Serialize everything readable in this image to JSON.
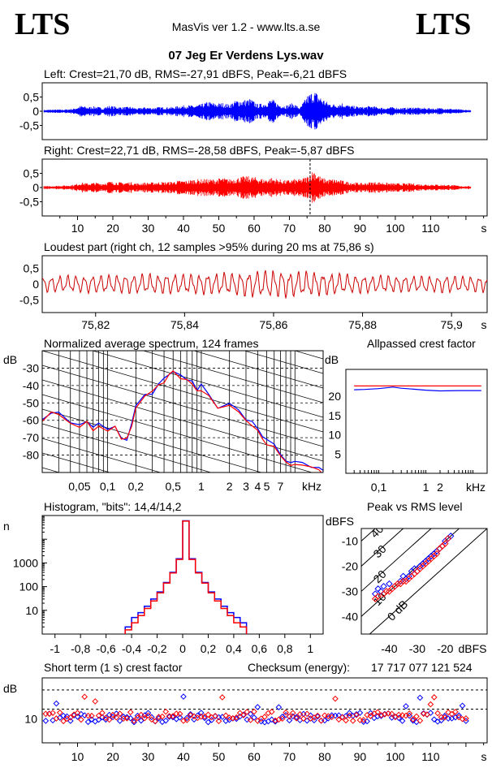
{
  "header": {
    "logo_left": "LTS",
    "logo_right": "LTS",
    "app_title": "MasVis ver 1.2 - www.lts.a.se",
    "file_name": "07 Jeg Er Verdens Lys.wav"
  },
  "colors": {
    "left": "#0000ff",
    "right": "#ff0000",
    "background": "#ffffff",
    "axis": "#000000"
  },
  "chart_data": [
    {
      "id": "left",
      "type": "line",
      "title": "Left: Crest=21,70 dB, RMS=-27,91 dBFS, Peak=-6,21 dBFS",
      "y_ticks": [
        "0,5",
        "0",
        "-0,5"
      ],
      "xlim": [
        0,
        126
      ],
      "ylim": [
        -1,
        1
      ],
      "series": [
        {
          "name": "Left",
          "color": "#0000ff",
          "envelope_x": [
            1,
            3,
            5,
            7,
            9,
            11,
            13,
            15,
            17,
            19,
            21,
            23,
            25,
            27,
            29,
            31,
            33,
            35,
            37,
            39,
            41,
            43,
            45,
            47,
            49,
            51,
            53,
            55,
            57,
            59,
            61,
            63,
            65,
            67,
            69,
            71,
            73,
            75,
            77,
            79,
            81,
            83,
            85,
            87,
            89,
            91,
            93,
            95,
            97,
            99,
            101,
            103,
            105,
            107,
            109,
            111,
            113,
            115,
            117,
            119
          ],
          "envelope_amp": [
            0.05,
            0.06,
            0.06,
            0.07,
            0.1,
            0.2,
            0.15,
            0.18,
            0.12,
            0.2,
            0.16,
            0.15,
            0.16,
            0.1,
            0.15,
            0.12,
            0.15,
            0.15,
            0.15,
            0.2,
            0.22,
            0.2,
            0.25,
            0.35,
            0.28,
            0.3,
            0.25,
            0.4,
            0.4,
            0.45,
            0.25,
            0.3,
            0.45,
            0.25,
            0.2,
            0.3,
            0.12,
            0.55,
            0.75,
            0.5,
            0.3,
            0.25,
            0.3,
            0.2,
            0.18,
            0.15,
            0.2,
            0.15,
            0.12,
            0.15,
            0.12,
            0.12,
            0.15,
            0.12,
            0.12,
            0.1,
            0.12,
            0.1,
            0.08,
            0.06
          ]
        }
      ]
    },
    {
      "id": "right",
      "type": "line",
      "title": "Right: Crest=22,71 dB, RMS=-28,58 dBFS, Peak=-5,87 dBFS",
      "y_ticks": [
        "0,5",
        "0",
        "-0,5"
      ],
      "x_ticks": [
        "10",
        "20",
        "30",
        "40",
        "50",
        "60",
        "70",
        "80",
        "90",
        "100",
        "110"
      ],
      "x_unit": "s",
      "xlim": [
        0,
        126
      ],
      "ylim": [
        -1,
        1
      ],
      "marker_time": 75.86,
      "series": [
        {
          "name": "Right",
          "color": "#ff0000",
          "envelope_x": [
            1,
            3,
            5,
            7,
            9,
            11,
            13,
            15,
            17,
            19,
            21,
            23,
            25,
            27,
            29,
            31,
            33,
            35,
            37,
            39,
            41,
            43,
            45,
            47,
            49,
            51,
            53,
            55,
            57,
            59,
            61,
            63,
            65,
            67,
            69,
            71,
            73,
            75,
            77,
            79,
            81,
            83,
            85,
            87,
            89,
            91,
            93,
            95,
            97,
            99,
            101,
            103,
            105,
            107,
            109,
            111,
            113,
            115,
            117,
            119
          ],
          "envelope_amp": [
            0.05,
            0.06,
            0.07,
            0.08,
            0.1,
            0.18,
            0.15,
            0.18,
            0.15,
            0.22,
            0.2,
            0.18,
            0.2,
            0.15,
            0.18,
            0.18,
            0.2,
            0.2,
            0.22,
            0.25,
            0.25,
            0.3,
            0.3,
            0.3,
            0.3,
            0.35,
            0.3,
            0.35,
            0.4,
            0.4,
            0.35,
            0.3,
            0.35,
            0.3,
            0.25,
            0.3,
            0.3,
            0.4,
            0.65,
            0.35,
            0.3,
            0.3,
            0.25,
            0.2,
            0.18,
            0.15,
            0.2,
            0.2,
            0.18,
            0.15,
            0.15,
            0.15,
            0.15,
            0.12,
            0.12,
            0.12,
            0.1,
            0.1,
            0.08,
            0.06
          ]
        }
      ]
    },
    {
      "id": "loudest",
      "type": "line",
      "title": "Loudest part (right ch, 12 samples >95% during 20 ms at 75,86 s)",
      "y_ticks": [
        "0,5",
        "0",
        "-0,5"
      ],
      "x_ticks": [
        "75,82",
        "75,84",
        "75,86",
        "75,88",
        "75,9"
      ],
      "x_unit": "s",
      "xlim": [
        75.808,
        75.908
      ],
      "ylim": [
        -0.9,
        0.9
      ],
      "series": [
        {
          "name": "Right",
          "color": "#cc0000",
          "description_free": true,
          "envelope_x": [
            75.81,
            75.82,
            75.83,
            75.84,
            75.85,
            75.86,
            75.87,
            75.88,
            75.89,
            75.9
          ],
          "envelope_amp": [
            0.2,
            0.22,
            0.25,
            0.25,
            0.28,
            0.35,
            0.3,
            0.22,
            0.2,
            0.22
          ]
        }
      ]
    },
    {
      "id": "spectrum",
      "type": "line",
      "title": "Normalized average spectrum, 124 frames",
      "ylabel": "dB",
      "y_ticks": [
        "-30",
        "-40",
        "-50",
        "-60",
        "-70",
        "-80"
      ],
      "x_ticks": [
        "0,05",
        "0,1",
        "0,2",
        "0,5",
        "1",
        "2",
        "3",
        "4",
        "5",
        "7"
      ],
      "x_unit": "kHz",
      "xlim": [
        0.02,
        20
      ],
      "ylim": [
        -90,
        -20
      ],
      "x_scale": "log",
      "series": [
        {
          "name": "Left",
          "color": "#0000ff",
          "x": [
            0.02,
            0.025,
            0.03,
            0.04,
            0.05,
            0.06,
            0.07,
            0.08,
            0.1,
            0.12,
            0.14,
            0.16,
            0.18,
            0.2,
            0.25,
            0.3,
            0.35,
            0.4,
            0.45,
            0.5,
            0.6,
            0.7,
            0.8,
            0.9,
            1.0,
            1.2,
            1.5,
            2.0,
            2.5,
            3.0,
            3.5,
            4.0,
            4.5,
            5,
            6,
            7,
            8,
            9,
            10,
            12,
            15,
            18,
            20
          ],
          "y": [
            -60,
            -55,
            -56,
            -60,
            -62,
            -61,
            -65,
            -63,
            -64,
            -62,
            -70,
            -72,
            -62,
            -52,
            -45,
            -44,
            -40,
            -36,
            -34,
            -32,
            -35,
            -38,
            -38,
            -42,
            -40,
            -46,
            -52,
            -50,
            -55,
            -60,
            -62,
            -65,
            -68,
            -72,
            -75,
            -80,
            -84,
            -84,
            -83,
            -84,
            -86,
            -88,
            -90
          ]
        },
        {
          "name": "Right",
          "color": "#ff0000",
          "x": [
            0.02,
            0.025,
            0.03,
            0.04,
            0.05,
            0.06,
            0.07,
            0.08,
            0.1,
            0.12,
            0.14,
            0.16,
            0.18,
            0.2,
            0.25,
            0.3,
            0.35,
            0.4,
            0.45,
            0.5,
            0.6,
            0.7,
            0.8,
            0.9,
            1.0,
            1.2,
            1.5,
            2.0,
            2.5,
            3.0,
            3.5,
            4.0,
            4.5,
            5,
            6,
            7,
            8,
            9,
            10,
            12,
            15,
            18,
            20
          ],
          "y": [
            -62,
            -55,
            -57,
            -61,
            -63,
            -61,
            -65,
            -64,
            -65,
            -63,
            -70,
            -71,
            -63,
            -52,
            -46,
            -44,
            -41,
            -38,
            -35,
            -33,
            -36,
            -38,
            -40,
            -42,
            -44,
            -47,
            -52,
            -52,
            -56,
            -60,
            -62,
            -66,
            -70,
            -73,
            -76,
            -80,
            -83,
            -85,
            -84,
            -85,
            -87,
            -89,
            -90
          ]
        }
      ]
    },
    {
      "id": "allpass",
      "type": "line",
      "title": "Allpassed crest factor",
      "ylabel": "dB",
      "y_ticks": [
        "20",
        "15",
        "10",
        "5"
      ],
      "x_ticks": [
        "0,1",
        "1",
        "2"
      ],
      "x_unit": "kHz",
      "xlim": [
        0.02,
        20
      ],
      "ylim": [
        0,
        27
      ],
      "x_scale": "log",
      "series": [
        {
          "name": "Left",
          "color": "#0000ff",
          "x": [
            0.03,
            0.05,
            0.1,
            0.2,
            0.3,
            0.5,
            1,
            2,
            5,
            15
          ],
          "y": [
            21.7,
            21.8,
            22.0,
            22.4,
            22.1,
            21.9,
            21.6,
            21.4,
            21.5,
            21.5
          ]
        },
        {
          "name": "Right",
          "color": "#ff0000",
          "x": [
            0.03,
            0.05,
            0.1,
            0.2,
            0.3,
            0.5,
            1,
            2,
            5,
            15
          ],
          "y": [
            22.7,
            22.7,
            22.7,
            22.7,
            22.7,
            22.7,
            22.7,
            22.7,
            22.7,
            22.7
          ]
        }
      ]
    },
    {
      "id": "histogram",
      "type": "line",
      "title": "Histogram, \"bits\": 14,4/14,2",
      "ylabel": "n",
      "y_ticks": [
        "1000",
        "100",
        "10"
      ],
      "x_ticks": [
        "-1",
        "-0,8",
        "-0,6",
        "-0,4",
        "-0,2",
        "0",
        "0,2",
        "0,4",
        "0,6",
        "0,8",
        "1"
      ],
      "xlim": [
        -1.1,
        1.1
      ],
      "ylim": [
        1,
        100000
      ],
      "y_scale": "log",
      "series": [
        {
          "name": "Left",
          "color": "#0000ff",
          "x": [
            -0.45,
            -0.4,
            -0.35,
            -0.3,
            -0.25,
            -0.2,
            -0.15,
            -0.1,
            -0.05,
            0,
            0.05,
            0.1,
            0.15,
            0.2,
            0.25,
            0.3,
            0.35,
            0.4,
            0.45,
            0.5
          ],
          "y": [
            2,
            5,
            8,
            15,
            30,
            60,
            150,
            400,
            1500,
            60000,
            1500,
            400,
            150,
            60,
            30,
            15,
            8,
            5,
            3,
            2
          ]
        },
        {
          "name": "Right",
          "color": "#ff0000",
          "x": [
            -0.45,
            -0.4,
            -0.35,
            -0.3,
            -0.25,
            -0.2,
            -0.15,
            -0.1,
            -0.05,
            0,
            0.05,
            0.1,
            0.15,
            0.2,
            0.25,
            0.3,
            0.35,
            0.4,
            0.45,
            0.5
          ],
          "y": [
            1.5,
            3,
            6,
            12,
            25,
            55,
            140,
            380,
            1400,
            58000,
            1400,
            380,
            140,
            55,
            25,
            12,
            6,
            3,
            2,
            1.5
          ]
        }
      ]
    },
    {
      "id": "peak-rms",
      "type": "scatter",
      "title": "Peak vs RMS level",
      "ylabel": "dBFS",
      "xlabel": "dBFS",
      "y_ticks": [
        "-10",
        "-20",
        "-30",
        "-40"
      ],
      "x_ticks": [
        "-40",
        "-30",
        "-20"
      ],
      "diagonal_labels": [
        "40",
        "30",
        "20",
        "10",
        "0 dB"
      ],
      "xlim": [
        -50,
        -5
      ],
      "ylim": [
        -47,
        -5
      ],
      "series": [
        {
          "name": "Left",
          "color": "#0000ff",
          "x": [
            -45,
            -44,
            -43,
            -42,
            -40,
            -38,
            -36,
            -35,
            -34,
            -33,
            -32,
            -31,
            -30,
            -29,
            -28,
            -27,
            -26,
            -25,
            -24,
            -23,
            -22,
            -21,
            -20,
            -19,
            -18
          ],
          "y": [
            -31,
            -29,
            -30,
            -28,
            -27,
            -28,
            -26,
            -24,
            -25,
            -24,
            -22,
            -21,
            -22,
            -20,
            -19,
            -18,
            -17,
            -16,
            -15,
            -14,
            -13,
            -12,
            -10,
            -9,
            -8
          ]
        },
        {
          "name": "Right",
          "color": "#ff0000",
          "x": [
            -45,
            -44,
            -42,
            -41,
            -40,
            -39,
            -38,
            -37,
            -36,
            -35,
            -34,
            -33,
            -32,
            -31,
            -30,
            -29,
            -28,
            -27,
            -26,
            -25,
            -24,
            -23,
            -22,
            -21,
            -20,
            -19
          ],
          "y": [
            -33,
            -32,
            -31,
            -30,
            -30,
            -29,
            -28,
            -27,
            -27,
            -26,
            -26,
            -25,
            -24,
            -23,
            -22,
            -21,
            -20,
            -19,
            -18,
            -17,
            -16,
            -15,
            -13,
            -12,
            -11,
            -9
          ]
        }
      ]
    },
    {
      "id": "crest-short",
      "type": "scatter",
      "title": "Short term (1 s) crest factor",
      "ylabel": "dB",
      "y_ticks": [
        "10"
      ],
      "x_ticks": [
        "10",
        "20",
        "30",
        "40",
        "50",
        "60",
        "70",
        "80",
        "90",
        "100",
        "110"
      ],
      "x_unit": "s",
      "xlim": [
        0,
        126
      ],
      "ylim": [
        0,
        27
      ],
      "checksum_label": "Checksum (energy):",
      "checksum_value": "17 717 077 121 524",
      "series": [
        {
          "name": "Left",
          "color": "#0000ff",
          "y_base": 10.5
        },
        {
          "name": "Right",
          "color": "#ff0000",
          "y_base": 11.0
        }
      ]
    }
  ]
}
